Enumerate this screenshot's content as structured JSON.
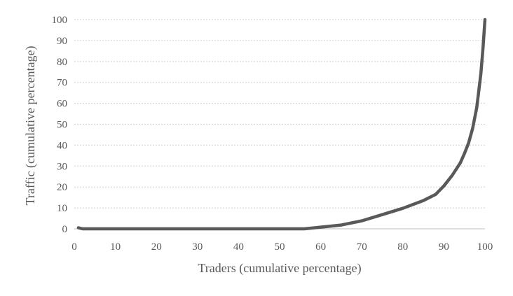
{
  "chart_data": {
    "type": "line",
    "title": "",
    "xlabel": "Traders (cumulative percentage)",
    "ylabel": "Traffic (cumulative percentage)",
    "xlim": [
      0,
      100
    ],
    "ylim": [
      0,
      100
    ],
    "x_ticks": [
      0,
      10,
      20,
      30,
      40,
      50,
      60,
      70,
      80,
      90,
      100
    ],
    "y_ticks": [
      0,
      10,
      20,
      30,
      40,
      50,
      60,
      70,
      80,
      90,
      100
    ],
    "grid": "horizontal dotted",
    "legend": "none",
    "series": [
      {
        "color": "#595959",
        "points": [
          [
            1,
            0.5
          ],
          [
            2,
            0
          ],
          [
            10,
            0
          ],
          [
            20,
            0
          ],
          [
            30,
            0
          ],
          [
            40,
            0
          ],
          [
            50,
            0
          ],
          [
            56,
            0
          ],
          [
            60,
            0.8
          ],
          [
            65,
            1.8
          ],
          [
            70,
            3.8
          ],
          [
            75,
            6.8
          ],
          [
            80,
            9.8
          ],
          [
            85,
            13.5
          ],
          [
            88,
            16.5
          ],
          [
            90,
            20.5
          ],
          [
            92,
            25.5
          ],
          [
            94,
            31.5
          ],
          [
            95,
            36
          ],
          [
            96,
            41
          ],
          [
            97,
            48
          ],
          [
            98,
            58
          ],
          [
            99,
            74
          ],
          [
            99.5,
            86
          ],
          [
            100,
            100
          ]
        ]
      }
    ]
  }
}
